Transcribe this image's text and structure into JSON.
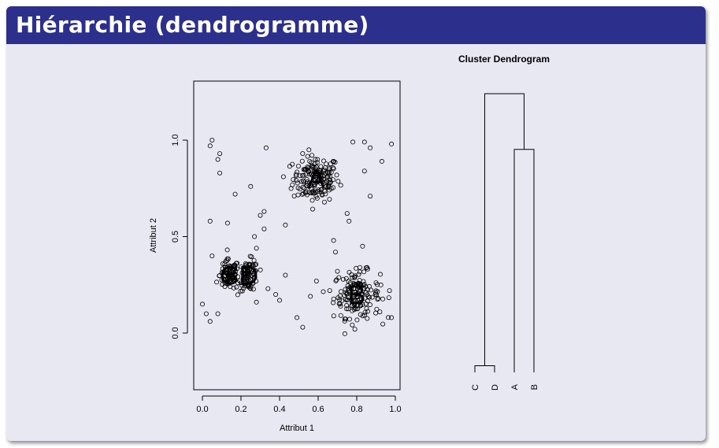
{
  "slide": {
    "title": "Hiérarchie (dendrogramme)"
  },
  "chart_data": [
    {
      "type": "scatter",
      "title": "",
      "xlabel": "Attribut 1",
      "ylabel": "Attribut 2",
      "xlim": [
        0.0,
        1.0
      ],
      "ylim": [
        -0.28,
        1.3
      ],
      "xticks": [
        "0.0",
        "0.2",
        "0.4",
        "0.6",
        "0.8",
        "1.0"
      ],
      "yticks": [
        "0.0",
        "0.5",
        "1.0"
      ],
      "marker": "open-circle",
      "clusters": [
        {
          "label": "A",
          "center": [
            0.59,
            0.8
          ],
          "spread": [
            0.06,
            0.06
          ],
          "count": 170
        },
        {
          "label": "B",
          "center": [
            0.8,
            0.2
          ],
          "spread": [
            0.06,
            0.06
          ],
          "count": 160
        },
        {
          "label": "C",
          "center": [
            0.14,
            0.3
          ],
          "spread": [
            0.025,
            0.04
          ],
          "count": 90
        },
        {
          "label": "D",
          "center": [
            0.24,
            0.3
          ],
          "spread": [
            0.025,
            0.04
          ],
          "count": 90
        }
      ],
      "noise_points": [
        {
          "x": 0.04,
          "y": 0.97
        },
        {
          "x": 0.05,
          "y": 1.0
        },
        {
          "x": 0.08,
          "y": 0.9
        },
        {
          "x": 0.09,
          "y": 0.93
        },
        {
          "x": 0.09,
          "y": 0.83
        },
        {
          "x": 0.17,
          "y": 0.72
        },
        {
          "x": 0.25,
          "y": 0.76
        },
        {
          "x": 0.33,
          "y": 0.96
        },
        {
          "x": 0.04,
          "y": 0.58
        },
        {
          "x": 0.13,
          "y": 0.57
        },
        {
          "x": 0.3,
          "y": 0.61
        },
        {
          "x": 0.32,
          "y": 0.63
        },
        {
          "x": 0.27,
          "y": 0.5
        },
        {
          "x": 0.32,
          "y": 0.54
        },
        {
          "x": 0.43,
          "y": 0.56
        },
        {
          "x": 0.42,
          "y": 0.81
        },
        {
          "x": 0.05,
          "y": 0.4
        },
        {
          "x": 0.28,
          "y": 0.44
        },
        {
          "x": 0.43,
          "y": 0.3
        },
        {
          "x": 0.34,
          "y": 0.23
        },
        {
          "x": 0.38,
          "y": 0.2
        },
        {
          "x": 0.4,
          "y": 0.17
        },
        {
          "x": 0.28,
          "y": 0.16
        },
        {
          "x": 0.0,
          "y": 0.15
        },
        {
          "x": 0.02,
          "y": 0.1
        },
        {
          "x": 0.04,
          "y": 0.06
        },
        {
          "x": 0.08,
          "y": 0.1
        },
        {
          "x": 0.49,
          "y": 0.08
        },
        {
          "x": 0.52,
          "y": 0.03
        },
        {
          "x": 0.56,
          "y": 0.19
        },
        {
          "x": 0.68,
          "y": 0.48
        },
        {
          "x": 0.69,
          "y": 0.42
        },
        {
          "x": 0.83,
          "y": 0.45
        },
        {
          "x": 0.75,
          "y": 0.62
        },
        {
          "x": 0.76,
          "y": 0.58
        },
        {
          "x": 0.78,
          "y": 0.99
        },
        {
          "x": 0.84,
          "y": 0.99
        },
        {
          "x": 0.87,
          "y": 0.96
        },
        {
          "x": 0.98,
          "y": 0.98
        },
        {
          "x": 0.93,
          "y": 0.89
        },
        {
          "x": 0.84,
          "y": 0.84
        },
        {
          "x": 0.87,
          "y": 0.71
        },
        {
          "x": 0.97,
          "y": 0.22
        },
        {
          "x": 0.98,
          "y": 0.08
        },
        {
          "x": 0.92,
          "y": 0.11
        },
        {
          "x": 0.79,
          "y": 0.02
        },
        {
          "x": 0.66,
          "y": 0.22
        },
        {
          "x": 0.7,
          "y": 0.32
        }
      ],
      "annotations": [
        "A",
        "B",
        "C",
        "D"
      ]
    },
    {
      "type": "dendrogram",
      "title": "Cluster Dendrogram",
      "leaves": [
        "C",
        "D",
        "A",
        "B"
      ],
      "merges": [
        {
          "left": "C",
          "right": "D",
          "height": 0.03
        },
        {
          "left": "A",
          "right": "B",
          "height": 1.0
        },
        {
          "left": "C+D",
          "right": "A+B",
          "height": 1.25
        }
      ]
    }
  ]
}
